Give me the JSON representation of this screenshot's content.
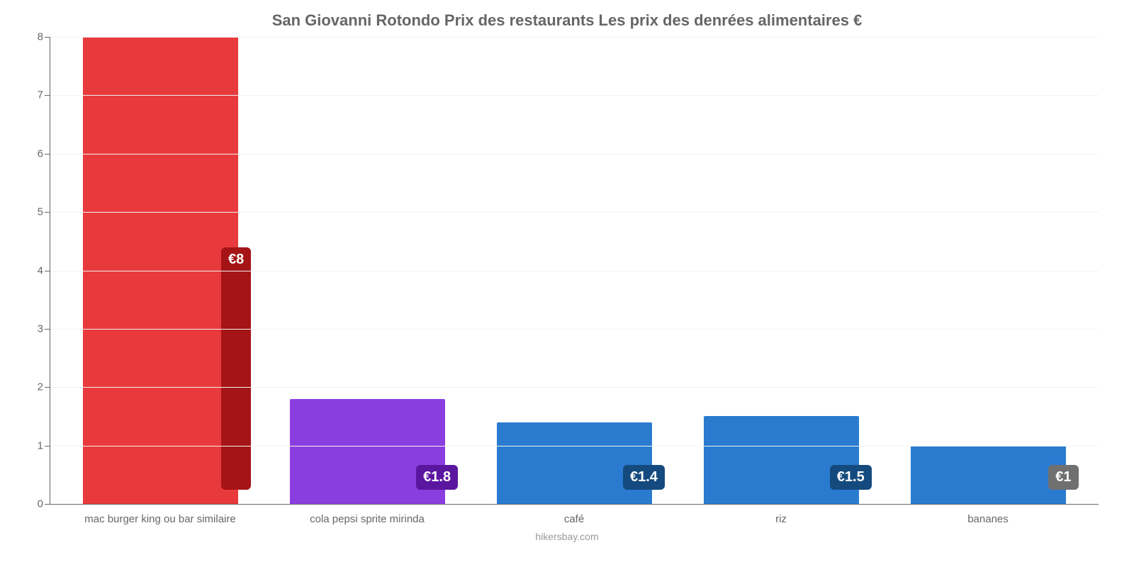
{
  "chart": {
    "type": "bar",
    "title": "San Giovanni Rotondo Prix des restaurants Les prix des denrées alimentaires €",
    "title_fontsize": 22,
    "title_color": "#666666",
    "footer": "hikersbay.com",
    "footer_color": "#999999",
    "background_color": "#ffffff",
    "axis_color": "#666666",
    "grid_color": "#f3f3f3",
    "ylim": [
      0,
      8
    ],
    "ytick_step": 1,
    "yticks": [
      0,
      1,
      2,
      3,
      4,
      5,
      6,
      7,
      8
    ],
    "bar_width_pct": 75,
    "label_fontsize": 15,
    "label_color": "#666666",
    "badge_fontsize": 20,
    "categories": [
      "mac burger king ou bar similaire",
      "cola pepsi sprite mirinda",
      "café",
      "riz",
      "bananes"
    ],
    "values": [
      8,
      1.8,
      1.4,
      1.5,
      1
    ],
    "value_labels": [
      "€8",
      "€1.8",
      "€1.4",
      "€1.5",
      "€1"
    ],
    "bar_colors": [
      "#e83a3c",
      "#8b3ee0",
      "#2a7bd0",
      "#2a7bd0",
      "#2a7bd0"
    ],
    "badge_colors": [
      "#a51416",
      "#5a169f",
      "#144a7d",
      "#144a7d",
      "#707070"
    ]
  }
}
